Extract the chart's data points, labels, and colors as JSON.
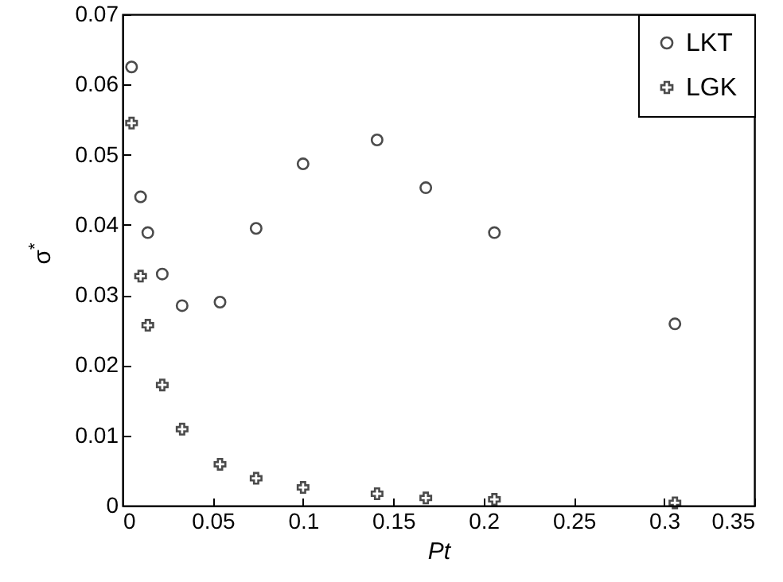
{
  "chart_data": {
    "type": "scatter",
    "xlabel": "Pt",
    "ylabel": "σ$^{*}$",
    "xlim": [
      0,
      0.35
    ],
    "xticks": [
      0,
      0.05,
      0.1,
      0.15,
      0.2,
      0.25,
      0.3,
      0.35
    ],
    "ylim": [
      0,
      0.07
    ],
    "yticks": [
      0,
      0.01,
      0.02,
      0.03,
      0.04,
      0.05,
      0.06,
      0.07
    ],
    "grid": false,
    "legend": "top right",
    "series": [
      {
        "name": "LKT",
        "color": "#000000",
        "marker": "circle",
        "x": [
          0.005,
          0.01,
          0.014,
          0.022,
          0.033,
          0.054,
          0.074,
          0.1,
          0.141,
          0.168,
          0.206,
          0.306
        ],
        "values": [
          0.0625,
          0.044,
          0.0389,
          0.033,
          0.0285,
          0.029,
          0.0395,
          0.0487,
          0.0521,
          0.0453,
          0.0389,
          0.0259
        ]
      },
      {
        "name": "LGK",
        "color": "#000000",
        "marker": "cross",
        "x": [
          0.005,
          0.01,
          0.014,
          0.022,
          0.033,
          0.054,
          0.074,
          0.1,
          0.141,
          0.168,
          0.206,
          0.306
        ],
        "values": [
          0.0545,
          0.0327,
          0.0257,
          0.0172,
          0.0109,
          0.0059,
          0.0039,
          0.0026,
          0.0017,
          0.0011,
          0.0009,
          0.0004
        ]
      }
    ]
  }
}
